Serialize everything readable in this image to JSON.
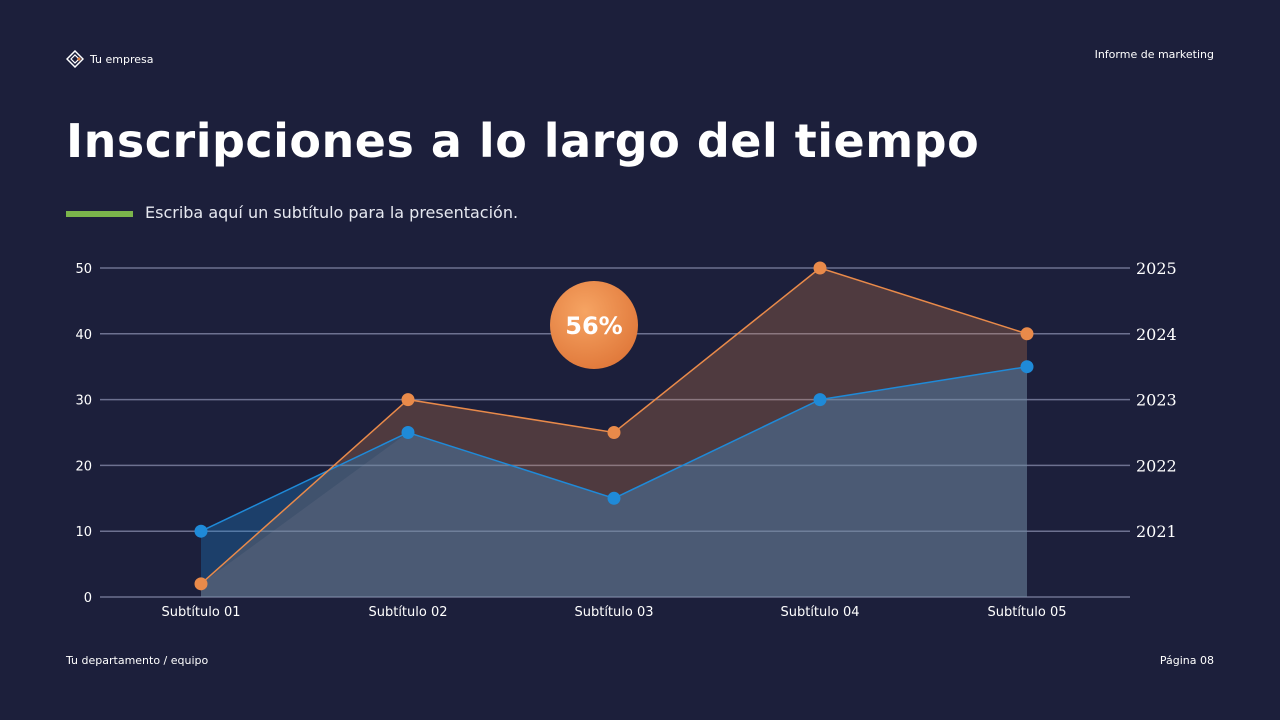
{
  "header": {
    "brand": "Tu empresa",
    "report": "Informe de marketing"
  },
  "title": "Inscripciones a lo largo del tiempo",
  "subtitle": "Escriba aquí un subtítulo para la presentación.",
  "footer": {
    "department": "Tu departamento / equipo",
    "page": "Página 08"
  },
  "colors": {
    "background": "#1c1f3b",
    "accent_green": "#7bb54b",
    "orange": "#e98a4a",
    "blue": "#1f8ad8"
  },
  "chart_data": {
    "type": "area",
    "categories": [
      "Subtítulo 01",
      "Subtítulo 02",
      "Subtítulo 03",
      "Subtítulo 04",
      "Subtítulo 05"
    ],
    "series": [
      {
        "values": [
          2,
          30,
          25,
          50,
          40
        ],
        "color": "#e98a4a"
      },
      {
        "values": [
          10,
          25,
          15,
          30,
          35
        ],
        "color": "#1f8ad8"
      }
    ],
    "ylim": [
      0,
      50
    ],
    "yticks": [
      0,
      10,
      20,
      30,
      40,
      50
    ],
    "right_ticks": [
      "2021",
      "2022",
      "2023",
      "2024",
      "2025"
    ],
    "grid": true,
    "badge": "56%"
  }
}
